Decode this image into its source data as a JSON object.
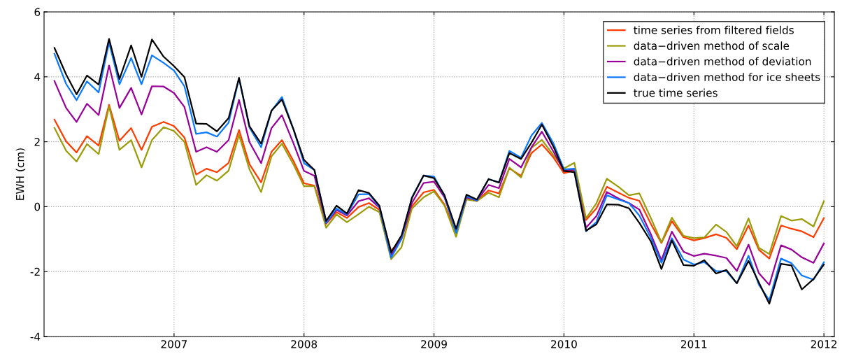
{
  "chart_data": {
    "type": "line",
    "ylabel": "EWH (cm)",
    "x": [
      2006.08,
      2006.17,
      2006.25,
      2006.33,
      2006.42,
      2006.5,
      2006.58,
      2006.67,
      2006.75,
      2006.83,
      2006.92,
      2007.0,
      2007.08,
      2007.17,
      2007.25,
      2007.33,
      2007.42,
      2007.5,
      2007.58,
      2007.67,
      2007.75,
      2007.83,
      2007.92,
      2008.0,
      2008.08,
      2008.17,
      2008.25,
      2008.33,
      2008.42,
      2008.5,
      2008.58,
      2008.67,
      2008.75,
      2008.83,
      2008.92,
      2009.0,
      2009.08,
      2009.17,
      2009.25,
      2009.33,
      2009.42,
      2009.5,
      2009.58,
      2009.67,
      2009.75,
      2009.83,
      2009.92,
      2010.0,
      2010.08,
      2010.17,
      2010.25,
      2010.33,
      2010.42,
      2010.5,
      2010.58,
      2010.67,
      2010.75,
      2010.83,
      2010.92,
      2011.0,
      2011.08,
      2011.17,
      2011.25,
      2011.33,
      2011.42,
      2011.5,
      2011.58,
      2011.67,
      2011.75,
      2011.83,
      2011.92,
      2012.0
    ],
    "series": [
      {
        "name": "time series from filtered fields",
        "color": "#ff3c00",
        "values": [
          2.68,
          2.01,
          1.67,
          2.17,
          1.88,
          3.14,
          2.03,
          2.42,
          1.75,
          2.46,
          2.61,
          2.48,
          2.13,
          0.99,
          1.17,
          1.06,
          1.35,
          2.36,
          1.31,
          0.75,
          1.69,
          2.05,
          1.4,
          0.72,
          0.65,
          -0.53,
          -0.17,
          -0.35,
          -0.01,
          0.11,
          -0.1,
          -1.36,
          -1.0,
          0.01,
          0.44,
          0.52,
          0.07,
          -0.79,
          0.25,
          0.18,
          0.5,
          0.41,
          1.18,
          0.95,
          1.65,
          1.92,
          1.51,
          1.03,
          1.12,
          -0.41,
          -0.05,
          0.61,
          0.43,
          0.27,
          0.18,
          -0.54,
          -1.12,
          -0.45,
          -0.94,
          -1.04,
          -0.97,
          -0.85,
          -0.96,
          -1.31,
          -0.58,
          -1.33,
          -1.6,
          -0.58,
          -0.68,
          -0.76,
          -0.94,
          -0.35
        ]
      },
      {
        "name": "data−driven method of scale",
        "color": "#9c9c0a",
        "values": [
          2.43,
          1.72,
          1.39,
          1.93,
          1.62,
          3.09,
          1.75,
          2.05,
          1.21,
          2.05,
          2.45,
          2.33,
          1.99,
          0.67,
          0.97,
          0.8,
          1.11,
          2.21,
          1.15,
          0.45,
          1.55,
          1.94,
          1.29,
          0.63,
          0.63,
          -0.65,
          -0.24,
          -0.48,
          -0.23,
          0.0,
          -0.17,
          -1.62,
          -1.25,
          -0.06,
          0.29,
          0.47,
          0.04,
          -0.93,
          0.22,
          0.17,
          0.43,
          0.29,
          1.2,
          0.9,
          1.81,
          2.06,
          1.58,
          1.18,
          1.35,
          -0.36,
          0.11,
          0.86,
          0.61,
          0.35,
          0.41,
          -0.36,
          -1.1,
          -0.34,
          -0.9,
          -0.97,
          -0.95,
          -0.55,
          -0.78,
          -1.22,
          -0.36,
          -1.27,
          -1.46,
          -0.29,
          -0.43,
          -0.38,
          -0.61,
          0.17
        ]
      },
      {
        "name": "data−driven method of deviation",
        "color": "#990099",
        "values": [
          3.87,
          3.04,
          2.61,
          3.17,
          2.82,
          4.35,
          3.04,
          3.66,
          2.84,
          3.71,
          3.7,
          3.5,
          3.07,
          1.69,
          1.83,
          1.69,
          2.05,
          3.29,
          1.99,
          1.34,
          2.42,
          2.82,
          1.94,
          1.1,
          0.95,
          -0.51,
          -0.1,
          -0.27,
          0.17,
          0.26,
          -0.03,
          -1.5,
          -0.98,
          0.11,
          0.73,
          0.77,
          0.29,
          -0.75,
          0.29,
          0.19,
          0.67,
          0.57,
          1.47,
          1.21,
          1.83,
          2.31,
          1.69,
          1.1,
          1.15,
          -0.65,
          -0.29,
          0.45,
          0.25,
          0.11,
          -0.09,
          -0.86,
          -1.65,
          -0.77,
          -1.39,
          -1.52,
          -1.45,
          -1.51,
          -1.58,
          -1.98,
          -1.17,
          -2.05,
          -2.41,
          -1.19,
          -1.32,
          -1.56,
          -1.73,
          -1.13
        ]
      },
      {
        "name": "data−driven method for ice sheets",
        "color": "#0a78ff",
        "values": [
          4.71,
          3.78,
          3.28,
          3.86,
          3.52,
          5.06,
          3.77,
          4.58,
          3.77,
          4.66,
          4.43,
          4.19,
          3.71,
          2.24,
          2.29,
          2.16,
          2.59,
          3.95,
          2.44,
          1.83,
          2.95,
          3.38,
          2.37,
          1.34,
          1.13,
          -0.5,
          -0.06,
          -0.24,
          0.38,
          0.39,
          -0.01,
          -1.57,
          -1.0,
          0.29,
          0.96,
          0.93,
          0.34,
          -0.81,
          0.32,
          0.19,
          0.85,
          0.75,
          1.72,
          1.51,
          2.19,
          2.58,
          1.94,
          1.15,
          1.17,
          -0.76,
          -0.47,
          0.35,
          0.22,
          0.11,
          -0.27,
          -0.97,
          -1.73,
          -0.97,
          -1.63,
          -1.78,
          -1.71,
          -1.98,
          -1.99,
          -2.36,
          -1.51,
          -2.41,
          -2.88,
          -1.6,
          -1.74,
          -2.12,
          -2.25,
          -1.71
        ]
      },
      {
        "name": "true time series",
        "color": "#000000",
        "values": [
          4.89,
          4.07,
          3.46,
          4.04,
          3.76,
          5.17,
          3.93,
          4.97,
          4.0,
          5.15,
          4.62,
          4.33,
          3.99,
          2.56,
          2.55,
          2.32,
          2.73,
          3.97,
          2.48,
          1.94,
          2.96,
          3.3,
          2.37,
          1.44,
          1.13,
          -0.44,
          0.03,
          -0.21,
          0.51,
          0.42,
          0.03,
          -1.41,
          -0.89,
          0.26,
          0.96,
          0.88,
          0.36,
          -0.68,
          0.37,
          0.22,
          0.85,
          0.74,
          1.65,
          1.47,
          1.97,
          2.53,
          1.84,
          1.1,
          1.06,
          -0.74,
          -0.54,
          0.07,
          0.06,
          -0.05,
          -0.5,
          -1.08,
          -1.92,
          -1.04,
          -1.8,
          -1.82,
          -1.65,
          -2.06,
          -1.95,
          -2.36,
          -1.67,
          -2.34,
          -2.99,
          -1.76,
          -1.81,
          -2.55,
          -2.23,
          -1.78
        ]
      }
    ],
    "xlim": [
      2006,
      2012.08
    ],
    "xticks": [
      2007,
      2008,
      2009,
      2010,
      2011,
      2012
    ],
    "ylim": [
      -4,
      6
    ],
    "yticks": [
      -4,
      -2,
      0,
      2,
      4,
      6
    ],
    "grid": true,
    "legend": "top right",
    "marker": "none",
    "line_style": "solid"
  }
}
